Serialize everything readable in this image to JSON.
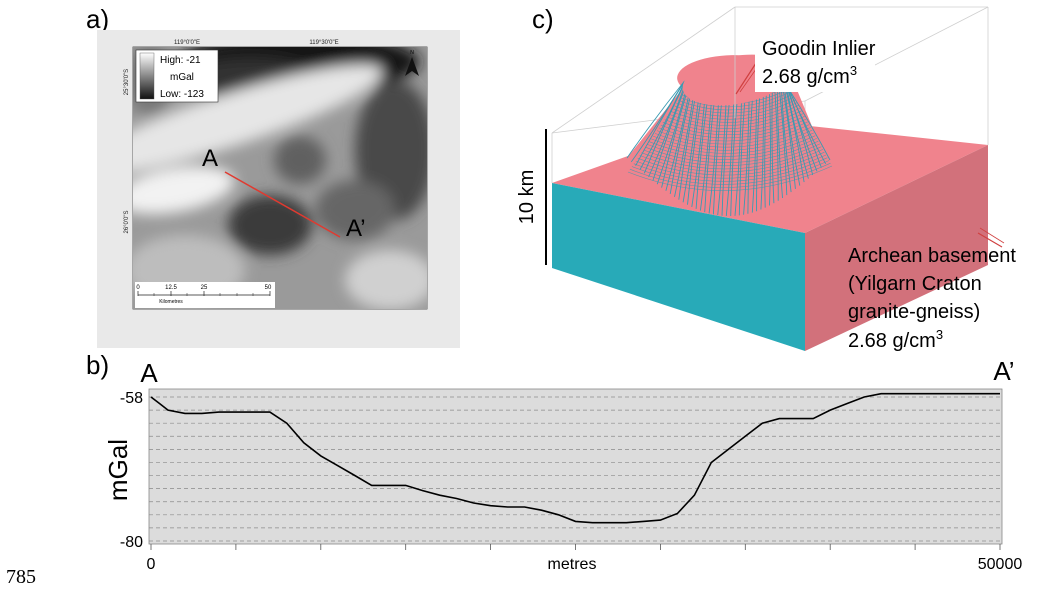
{
  "line_number": "785",
  "panel_a": {
    "letter": "a)",
    "coord_top_left": "119°0'0\"E",
    "coord_top_right": "119°30'0\"E",
    "coord_left_top": "25°30'0\"S",
    "coord_left_bottom": "26°0'0\"S",
    "legend_high": "High: -21",
    "legend_unit": "mGal",
    "legend_low": "Low: -123",
    "north_label": "N",
    "scale_ticks": [
      "0",
      "12.5",
      "25",
      "50"
    ],
    "scale_unit": "Kilometres",
    "profile_start": "A",
    "profile_end": "A’"
  },
  "panel_b": {
    "letter": "b)",
    "start_label": "A",
    "end_label": "A’"
  },
  "panel_c": {
    "letter": "c)",
    "scale_label": "10 km",
    "body_name": "Goodin Inlier",
    "body_density": "2.68 g/cm",
    "body_density_sup": "3",
    "basement_lines": [
      "Archean basement",
      "(Yilgarn Craton",
      "granite-gneiss)"
    ],
    "basement_density": "2.68 g/cm",
    "basement_density_sup": "3"
  },
  "colors": {
    "profile_red": "#e03a30",
    "basement_pink": "#f0838d",
    "basement_side": "#d2717b",
    "teal": "#28aab8",
    "cone_lines": "#3a9ab2"
  },
  "chart_data": {
    "type": "line",
    "title": "",
    "xlabel": "metres",
    "ylabel": "mGal",
    "x_tick_labels": [
      "0",
      "50000"
    ],
    "y_tick_labels": [
      "-58",
      "-80"
    ],
    "xlim": [
      0,
      50000
    ],
    "ylim": [
      -80,
      -58
    ],
    "grid": true,
    "series": [
      {
        "x": [
          0,
          500,
          1000,
          2000,
          3000,
          4000,
          5000,
          6000,
          7000,
          8000,
          9000,
          10000,
          11000,
          12000,
          13000,
          14000,
          15000,
          16000,
          17000,
          18000,
          19000,
          20000,
          21000,
          22000,
          23000,
          24000,
          25000,
          26000,
          27000,
          28000,
          29000,
          30000,
          31000,
          32000,
          33000,
          34000,
          35000,
          36000,
          37000,
          38000,
          39000,
          40000,
          41000,
          42000,
          43000,
          44000,
          45000,
          46000,
          47000,
          48000,
          49000,
          50000
        ],
        "values": [
          -58.0,
          -59.0,
          -60.0,
          -60.5,
          -60.5,
          -60.3,
          -60.3,
          -60.3,
          -60.3,
          -62.0,
          -65.0,
          -67.0,
          -68.5,
          -70.0,
          -71.5,
          -71.5,
          -71.5,
          -72.3,
          -73.0,
          -73.5,
          -74.2,
          -74.6,
          -74.8,
          -74.8,
          -75.3,
          -76.0,
          -77.0,
          -77.2,
          -77.2,
          -77.2,
          -77.0,
          -76.8,
          -75.8,
          -73.0,
          -68.0,
          -66.0,
          -64.0,
          -62.0,
          -61.3,
          -61.3,
          -61.3,
          -60.0,
          -59.0,
          -58.0,
          -57.5,
          -57.5,
          -57.5,
          -57.5,
          -57.5,
          -57.5,
          -57.5,
          -57.5
        ]
      }
    ]
  }
}
